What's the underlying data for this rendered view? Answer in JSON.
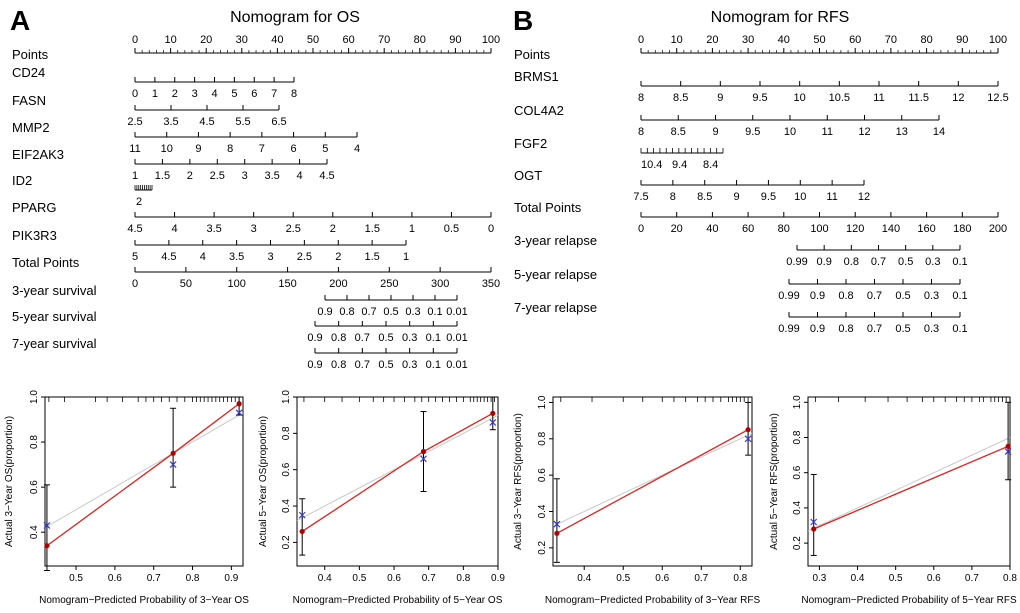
{
  "panels": {
    "A": {
      "letter": "A",
      "title": "Nomogram for OS",
      "rows": [
        {
          "label": "Points",
          "ticks": [
            "0",
            "10",
            "20",
            "30",
            "40",
            "50",
            "60",
            "70",
            "80",
            "90",
            "100"
          ],
          "pos": "above"
        },
        {
          "label": "CD24",
          "ticks": [
            "0",
            "1",
            "2",
            "3",
            "4",
            "5",
            "6",
            "7",
            "8"
          ],
          "pos": "below"
        },
        {
          "label": "FASN",
          "ticks": [
            "2.5",
            "3.5",
            "4.5",
            "5.5",
            "6.5"
          ],
          "pos": "below"
        },
        {
          "label": "MMP2",
          "ticks": [
            "11",
            "10",
            "9",
            "8",
            "7",
            "6",
            "5",
            "4"
          ],
          "pos": "below"
        },
        {
          "label": "EIF2AK3",
          "ticks": [
            "1",
            "1.5",
            "2",
            "2.5",
            "3",
            "3.5",
            "4",
            "4.5"
          ],
          "pos": "below"
        },
        {
          "label": "ID2",
          "ticks": [
            "2"
          ],
          "pos": "below",
          "dense": true
        },
        {
          "label": "PPARG",
          "ticks": [
            "4.5",
            "4",
            "3.5",
            "3",
            "2.5",
            "2",
            "1.5",
            "1",
            "0.5",
            "0"
          ],
          "pos": "below"
        },
        {
          "label": "PIK3R3",
          "ticks": [
            "5",
            "4.5",
            "4",
            "3.5",
            "3",
            "2.5",
            "2",
            "1.5",
            "1"
          ],
          "pos": "below"
        },
        {
          "label": "Total Points",
          "ticks": [
            "0",
            "50",
            "100",
            "150",
            "200",
            "250",
            "300",
            "350"
          ],
          "pos": "below"
        },
        {
          "label": "3-year survival",
          "ticks": [
            "0.9",
            "0.8",
            "0.7",
            "0.5",
            "0.3",
            "0.1",
            "0.01"
          ],
          "pos": "below"
        },
        {
          "label": "5-year survival",
          "ticks": [
            "0.9",
            "0.8",
            "0.7",
            "0.5",
            "0.3",
            "0.1",
            "0.01"
          ],
          "pos": "below"
        },
        {
          "label": "7-year survival",
          "ticks": [
            "0.9",
            "0.8",
            "0.7",
            "0.5",
            "0.3",
            "0.1",
            "0.01"
          ],
          "pos": "below"
        }
      ]
    },
    "B": {
      "letter": "B",
      "title": "Nomogram for RFS",
      "rows": [
        {
          "label": "Points",
          "ticks": [
            "0",
            "10",
            "20",
            "30",
            "40",
            "50",
            "60",
            "70",
            "80",
            "90",
            "100"
          ],
          "pos": "above"
        },
        {
          "label": "BRMS1",
          "ticks": [
            "8",
            "8.5",
            "9",
            "9.5",
            "10",
            "10.5",
            "11",
            "11.5",
            "12",
            "12.5"
          ],
          "pos": "below"
        },
        {
          "label": "COL4A2",
          "ticks": [
            "8",
            "8.5",
            "9",
            "9.5",
            "10",
            "11",
            "12",
            "13",
            "14"
          ],
          "pos": "below"
        },
        {
          "label": "FGF2",
          "ticks": [
            "10.4",
            "9.4",
            "8.4"
          ],
          "pos": "below",
          "dense": true
        },
        {
          "label": "OGT",
          "ticks": [
            "7.5",
            "8",
            "8.5",
            "9",
            "9.5",
            "10",
            "11",
            "12"
          ],
          "pos": "below"
        },
        {
          "label": "Total Points",
          "ticks": [
            "0",
            "20",
            "40",
            "60",
            "80",
            "100",
            "120",
            "140",
            "160",
            "180",
            "200"
          ],
          "pos": "below"
        },
        {
          "label": "3-year relapse",
          "ticks": [
            "0.99",
            "0.9",
            "0.8",
            "0.7",
            "0.5",
            "0.3",
            "0.1"
          ],
          "pos": "below"
        },
        {
          "label": "5-year relapse",
          "ticks": [
            "0.99",
            "0.9",
            "0.8",
            "0.7",
            "0.5",
            "0.3",
            "0.1"
          ],
          "pos": "below"
        },
        {
          "label": "7-year relapse",
          "ticks": [
            "0.99",
            "0.9",
            "0.8",
            "0.7",
            "0.5",
            "0.3",
            "0.1"
          ],
          "pos": "below"
        }
      ]
    }
  },
  "colors": {
    "axis": "#000000",
    "fit_line": "#e0201c",
    "ideal_line": "#c8c8c8",
    "observed_point": "#b00000",
    "bias_corrected": "#3b3bd0"
  },
  "chart_data": [
    {
      "type": "scatter",
      "name": "calibration-3yr-os",
      "title": "",
      "xlabel": "Nomogram−Predicted Probability of 3−Year OS",
      "ylabel": "Actual 3−Year OS(proportion)",
      "xlim": [
        0.42,
        0.93
      ],
      "ylim": [
        0.25,
        1.0
      ],
      "xticks": [
        0.5,
        0.6,
        0.7,
        0.8,
        0.9
      ],
      "yticks": [
        0.4,
        0.6,
        0.8,
        1.0
      ],
      "observed": [
        {
          "x": 0.425,
          "y": 0.34,
          "lo": 0.23,
          "hi": 0.61
        },
        {
          "x": 0.75,
          "y": 0.75,
          "hi": 0.95,
          "lo": 0.6
        },
        {
          "x": 0.92,
          "y": 0.97,
          "lo": 0.92,
          "hi": 1.0
        }
      ],
      "corrected": [
        {
          "x": 0.425,
          "y": 0.43
        },
        {
          "x": 0.75,
          "y": 0.7
        },
        {
          "x": 0.92,
          "y": 0.93
        }
      ],
      "rug": [
        0.43,
        0.47,
        0.55,
        0.58,
        0.62,
        0.66,
        0.68,
        0.7,
        0.72,
        0.74,
        0.76,
        0.78,
        0.8,
        0.81,
        0.82,
        0.83,
        0.84,
        0.85,
        0.86,
        0.87,
        0.88,
        0.89,
        0.9,
        0.91,
        0.92
      ]
    },
    {
      "type": "scatter",
      "name": "calibration-5yr-os",
      "title": "",
      "xlabel": "Nomogram−Predicted Probability of 5−Year OS",
      "ylabel": "Actual 5−Year OS(proportion)",
      "xlim": [
        0.32,
        0.9
      ],
      "ylim": [
        0.07,
        1.0
      ],
      "xticks": [
        0.4,
        0.5,
        0.6,
        0.7,
        0.8,
        0.9
      ],
      "yticks": [
        0.2,
        0.4,
        0.6,
        0.8,
        1.0
      ],
      "observed": [
        {
          "x": 0.335,
          "y": 0.26,
          "lo": 0.13,
          "hi": 0.44
        },
        {
          "x": 0.685,
          "y": 0.7,
          "lo": 0.48,
          "hi": 0.92
        },
        {
          "x": 0.885,
          "y": 0.91,
          "lo": 0.82,
          "hi": 1.0
        }
      ],
      "corrected": [
        {
          "x": 0.335,
          "y": 0.35
        },
        {
          "x": 0.685,
          "y": 0.66
        },
        {
          "x": 0.885,
          "y": 0.86
        }
      ],
      "rug": [
        0.34,
        0.4,
        0.45,
        0.5,
        0.54,
        0.57,
        0.6,
        0.63,
        0.66,
        0.68,
        0.7,
        0.72,
        0.74,
        0.76,
        0.78,
        0.8,
        0.82,
        0.83,
        0.84,
        0.85,
        0.86,
        0.87,
        0.88,
        0.89
      ]
    },
    {
      "type": "scatter",
      "name": "calibration-3yr-rfs",
      "title": "",
      "xlabel": "Nomogram−Predicted Probability of 3−Year RFS",
      "ylabel": "Actual 3−Year RFS(proportion)",
      "xlim": [
        0.32,
        0.83
      ],
      "ylim": [
        0.1,
        1.03
      ],
      "xticks": [
        0.4,
        0.5,
        0.6,
        0.7,
        0.8
      ],
      "yticks": [
        0.2,
        0.4,
        0.6,
        0.8,
        1.0
      ],
      "observed": [
        {
          "x": 0.33,
          "y": 0.28,
          "lo": 0.12,
          "hi": 0.58
        },
        {
          "x": 0.82,
          "y": 0.85,
          "lo": 0.71,
          "hi": 1.0
        }
      ],
      "corrected": [
        {
          "x": 0.33,
          "y": 0.33
        },
        {
          "x": 0.82,
          "y": 0.8
        }
      ],
      "rug": [
        0.34,
        0.42,
        0.5,
        0.55,
        0.6,
        0.63,
        0.66,
        0.69,
        0.71,
        0.73,
        0.75,
        0.77,
        0.78,
        0.79,
        0.8,
        0.81,
        0.82
      ]
    },
    {
      "type": "scatter",
      "name": "calibration-5yr-rfs",
      "title": "",
      "xlabel": "Nomogram−Predicted Probability of 5−Year RFS",
      "ylabel": "Actual 5−Year RFS(proportion)",
      "xlim": [
        0.27,
        0.8
      ],
      "ylim": [
        0.07,
        1.03
      ],
      "xticks": [
        0.3,
        0.4,
        0.5,
        0.6,
        0.7,
        0.8
      ],
      "yticks": [
        0.2,
        0.4,
        0.6,
        0.8,
        1.0
      ],
      "observed": [
        {
          "x": 0.285,
          "y": 0.28,
          "lo": 0.13,
          "hi": 0.59
        },
        {
          "x": 0.795,
          "y": 0.75,
          "lo": 0.56,
          "hi": 1.0
        }
      ],
      "corrected": [
        {
          "x": 0.285,
          "y": 0.32
        },
        {
          "x": 0.795,
          "y": 0.72
        }
      ],
      "rug": [
        0.29,
        0.35,
        0.42,
        0.48,
        0.53,
        0.57,
        0.6,
        0.63,
        0.66,
        0.68,
        0.7,
        0.72,
        0.73,
        0.75,
        0.76,
        0.77,
        0.78,
        0.79
      ]
    }
  ]
}
